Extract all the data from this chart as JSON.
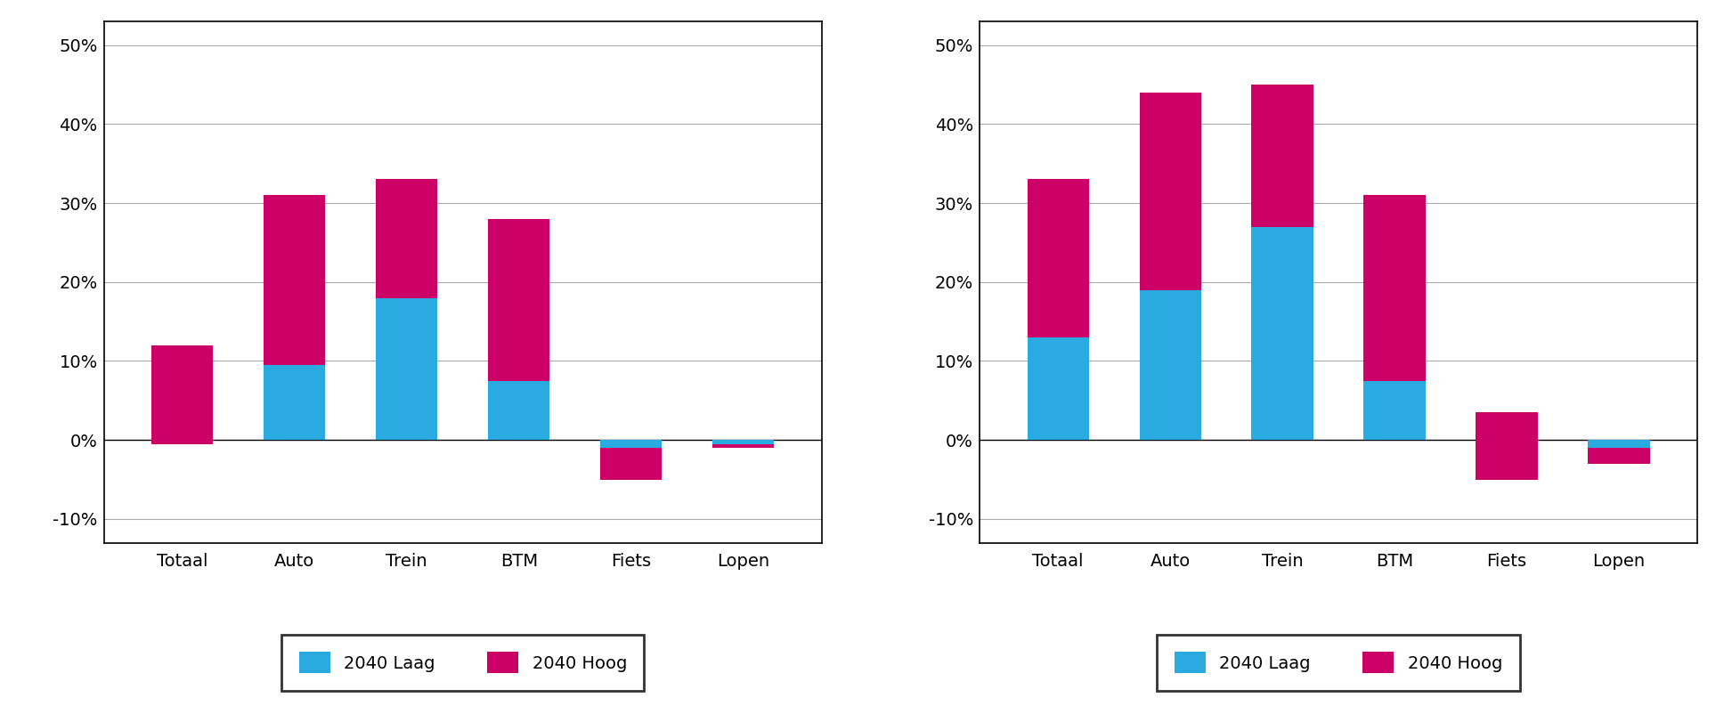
{
  "categories": [
    "Totaal",
    "Auto",
    "Trein",
    "BTM",
    "Fiets",
    "Lopen"
  ],
  "chart1": {
    "laag": [
      -0.5,
      9.5,
      18.0,
      7.5,
      -5.0,
      -1.0
    ],
    "hoog": [
      12.0,
      31.0,
      33.0,
      28.0,
      -1.0,
      -0.5
    ]
  },
  "chart2": {
    "laag": [
      13.0,
      19.0,
      27.0,
      7.5,
      -5.0,
      -3.0
    ],
    "hoog": [
      33.0,
      44.0,
      45.0,
      31.0,
      3.5,
      -1.0
    ]
  },
  "color_laag": "#29ABE2",
  "color_hoog": "#CC0066",
  "legend_laag": "2040 Laag",
  "legend_hoog": "2040 Hoog",
  "bar_width": 0.55,
  "background_color": "#FFFFFF",
  "grid_color": "#AAAAAA",
  "ytick_vals": [
    -10,
    0,
    10,
    20,
    30,
    40,
    50
  ],
  "ytick_labels": [
    "-10%",
    "0%",
    "10%",
    "20%",
    "30%",
    "40%",
    "50%"
  ]
}
